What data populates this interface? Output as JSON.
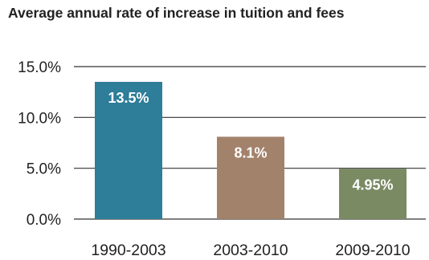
{
  "chart_data": {
    "type": "bar",
    "title": "Average annual rate of increase in tuition and fees",
    "xlabel": "",
    "ylabel": "",
    "categories": [
      "1990-2003",
      "2003-2010",
      "2009-2010"
    ],
    "values": [
      13.5,
      8.1,
      4.95
    ],
    "data_labels": [
      "13.5%",
      "8.1%",
      "4.95%"
    ],
    "colors": [
      "#2e7d99",
      "#a3826c",
      "#7a8a63"
    ],
    "ylim": [
      0,
      15
    ],
    "yticks": [
      0,
      5,
      10,
      15
    ],
    "ytick_labels": [
      "0.0%",
      "5.0%",
      "10.0%",
      "15.0%"
    ],
    "grid": true,
    "legend": "none"
  }
}
